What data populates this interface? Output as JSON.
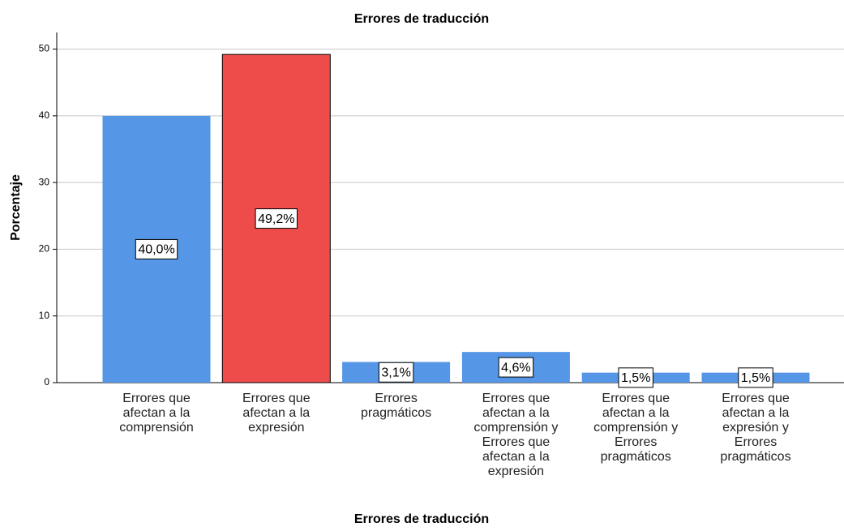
{
  "chart_data": {
    "type": "bar",
    "title": "Errores de traducción",
    "x_label": "Errores de traducción",
    "y_label": "Porcentaje",
    "categories": [
      "Errores que afectan a la comprensión",
      "Errores que afectan a la expresión",
      "Errores pragmáticos",
      "Errores que afectan a la comprensión y Errores que afectan a la expresión",
      "Errores que afectan a la comprensión y Errores pragmáticos",
      "Errores que afectan a la expresión y Errores pragmáticos"
    ],
    "values": [
      40.0,
      49.2,
      3.1,
      4.6,
      1.5,
      1.5
    ],
    "value_labels": [
      "40,0%",
      "49,2%",
      "3,1%",
      "4,6%",
      "1,5%",
      "1,5%"
    ],
    "colors": [
      "#5596e6",
      "#ee4b4b",
      "#5596e6",
      "#5596e6",
      "#5596e6",
      "#5596e6"
    ],
    "outlined": [
      false,
      true,
      false,
      false,
      false,
      false
    ],
    "ylim": [
      0,
      52.5
    ],
    "yticks": [
      0,
      10,
      20,
      30,
      40,
      50
    ],
    "grid": true
  }
}
